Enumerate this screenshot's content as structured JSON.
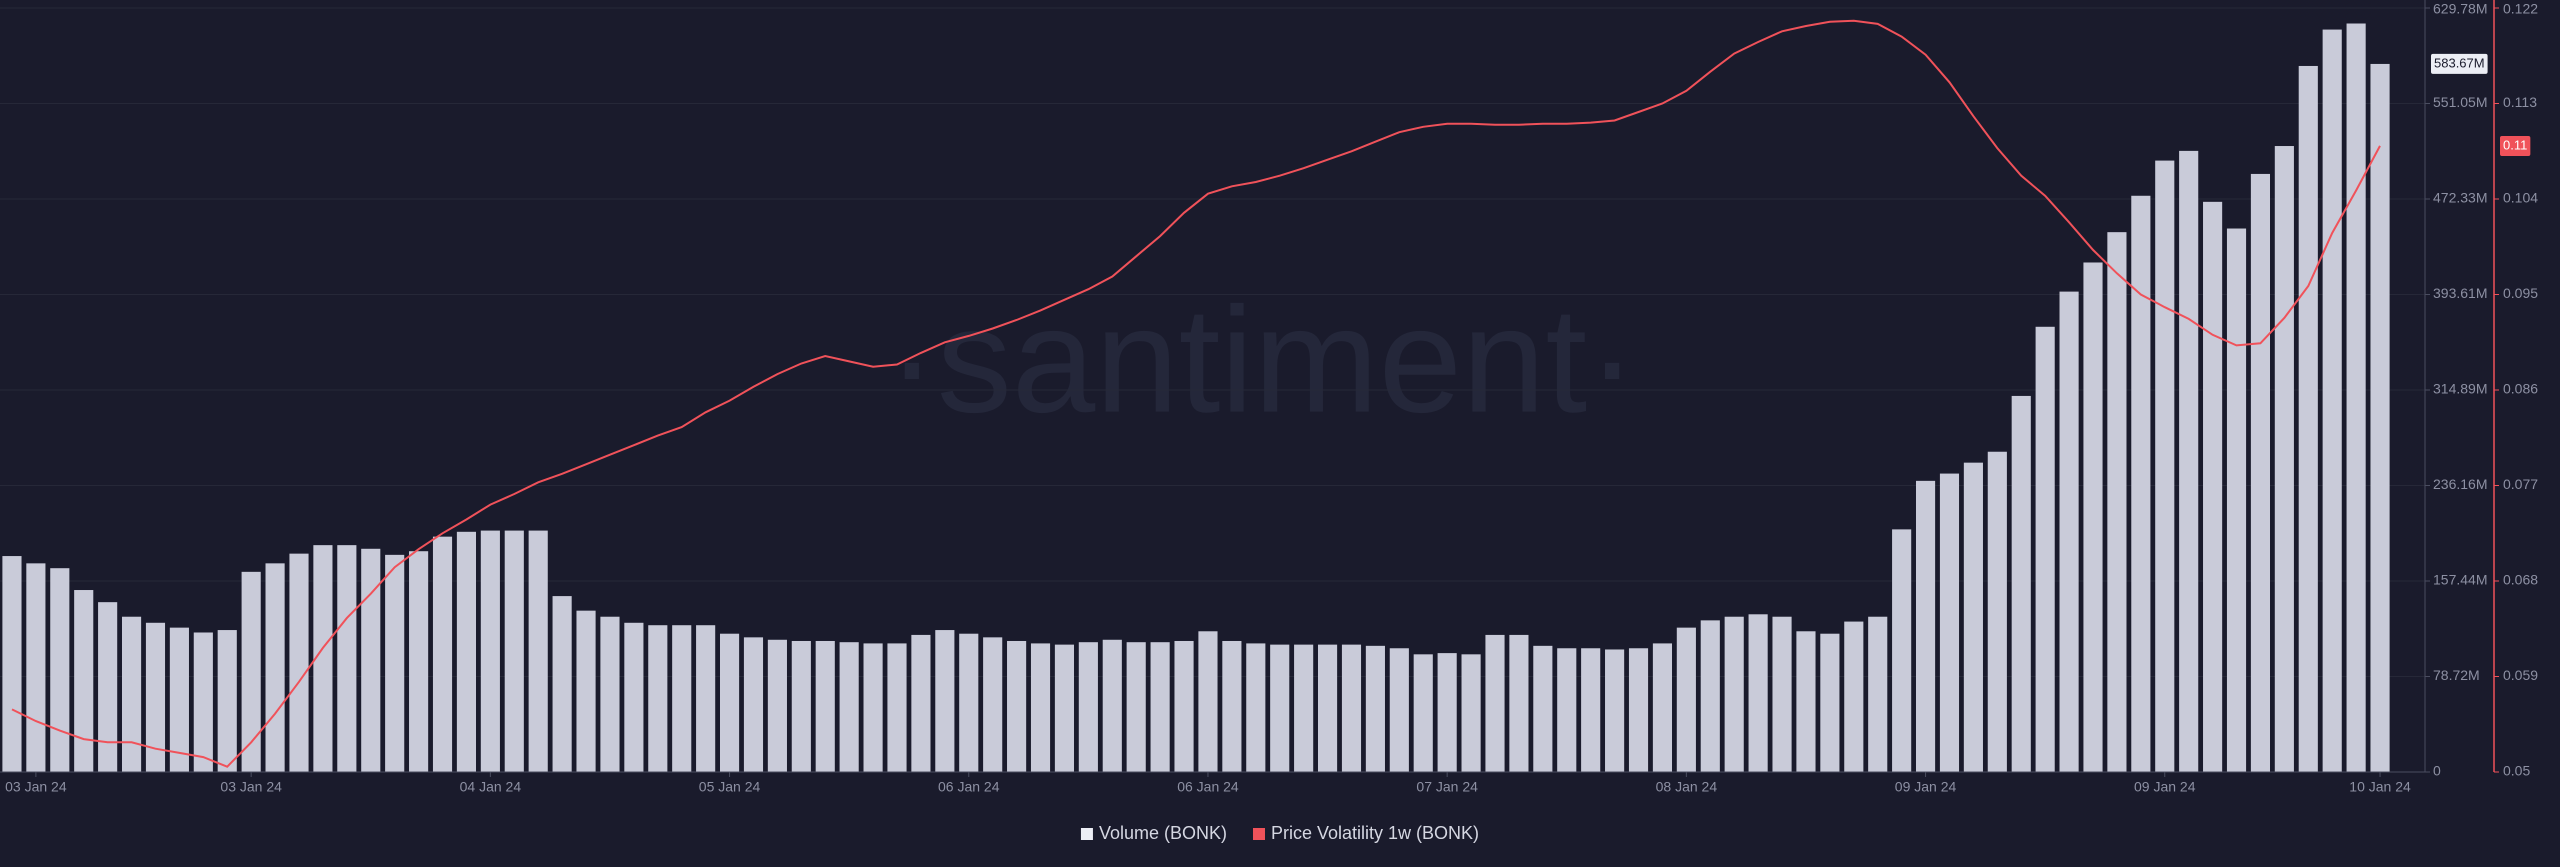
{
  "chart_data": {
    "type": "combo",
    "watermark": "·santiment·",
    "categories": [
      null,
      "03 Jan 24",
      null,
      null,
      null,
      null,
      null,
      null,
      null,
      null,
      "03 Jan 24",
      null,
      null,
      null,
      null,
      null,
      null,
      null,
      null,
      null,
      "04 Jan 24",
      null,
      null,
      null,
      null,
      null,
      null,
      null,
      null,
      null,
      "05 Jan 24",
      null,
      null,
      null,
      null,
      null,
      null,
      null,
      null,
      null,
      "06 Jan 24",
      null,
      null,
      null,
      null,
      null,
      null,
      null,
      null,
      null,
      "06 Jan 24",
      null,
      null,
      null,
      null,
      null,
      null,
      null,
      null,
      null,
      "07 Jan 24",
      null,
      null,
      null,
      null,
      null,
      null,
      null,
      null,
      null,
      "08 Jan 24",
      null,
      null,
      null,
      null,
      null,
      null,
      null,
      null,
      null,
      "09 Jan 24",
      null,
      null,
      null,
      null,
      null,
      null,
      null,
      null,
      null,
      "09 Jan 24",
      null,
      null,
      null,
      null,
      null,
      null,
      null,
      null,
      "10 Jan 24"
    ],
    "ylim": [
      0,
      629780000
    ],
    "yticks": [
      0,
      {
        "value": 78720000,
        "label": "78.72M"
      },
      {
        "value": 157440000,
        "label": "157.44M"
      },
      {
        "value": 236160000,
        "label": "236.16M"
      },
      {
        "value": 314890000,
        "label": "314.89M"
      },
      {
        "value": 393610000,
        "label": "393.61M"
      },
      {
        "value": 472330000,
        "label": "472.33M"
      },
      {
        "value": 551050000,
        "label": "551.05M"
      },
      {
        "value": 629780000,
        "label": "629.78M"
      }
    ],
    "y2lim": [
      0.05,
      0.122
    ],
    "y2ticks": [
      0.05,
      0.059,
      0.068,
      0.077,
      0.086,
      0.095,
      0.104,
      0.113,
      0.122
    ],
    "grid": true,
    "legend": "bottom",
    "series": [
      {
        "name": "Volume (BONK)",
        "type": "bar",
        "color": "#c9cbd9",
        "current_label": "583.67M",
        "values": [
          178000000,
          172000000,
          168000000,
          150000000,
          140000000,
          128000000,
          123000000,
          119000000,
          115000000,
          117000000,
          165000000,
          172000000,
          180000000,
          187000000,
          187000000,
          184000000,
          179000000,
          182000000,
          194000000,
          198000000,
          199000000,
          199000000,
          199000000,
          145000000,
          133000000,
          128000000,
          123000000,
          121000000,
          121000000,
          121000000,
          114000000,
          111000000,
          109000000,
          108000000,
          108000000,
          107000000,
          106000000,
          106000000,
          113000000,
          117000000,
          114000000,
          111000000,
          108000000,
          106000000,
          105000000,
          107000000,
          109000000,
          107000000,
          107000000,
          108000000,
          116000000,
          108000000,
          106000000,
          105000000,
          105000000,
          105000000,
          105000000,
          104000000,
          102000000,
          97000000,
          98000000,
          97000000,
          113000000,
          113000000,
          104000000,
          102000000,
          102000000,
          101000000,
          102000000,
          106000000,
          119000000,
          125000000,
          128000000,
          130000000,
          128000000,
          116000000,
          114000000,
          124000000,
          128000000,
          200000000,
          240000000,
          246000000,
          255000000,
          264000000,
          310000000,
          367000000,
          396000000,
          420000000,
          445000000,
          475000000,
          504000000,
          512000000,
          470000000,
          448000000,
          493000000,
          516000000,
          582000000,
          612000000,
          617000000,
          583670000
        ]
      },
      {
        "name": "Price Volatility 1w (BONK)",
        "type": "line",
        "axis": "y2",
        "color": "#f0525a",
        "current_label": "0.11",
        "values": [
          0.0559,
          0.0548,
          0.0539,
          0.0531,
          0.0528,
          0.0528,
          0.0522,
          0.0518,
          0.0514,
          0.0505,
          0.0528,
          0.0555,
          0.0585,
          0.0617,
          0.0645,
          0.0668,
          0.0693,
          0.071,
          0.0725,
          0.0738,
          0.0752,
          0.0762,
          0.0773,
          0.0781,
          0.079,
          0.0799,
          0.0808,
          0.0817,
          0.0825,
          0.0839,
          0.085,
          0.0863,
          0.0875,
          0.0885,
          0.0892,
          0.0887,
          0.0882,
          0.0884,
          0.0895,
          0.0905,
          0.0911,
          0.0918,
          0.0926,
          0.0935,
          0.0945,
          0.0955,
          0.0967,
          0.0986,
          0.1005,
          0.1027,
          0.1045,
          0.1052,
          0.1056,
          0.1062,
          0.1069,
          0.1077,
          0.1085,
          0.1094,
          0.1103,
          0.1108,
          0.1111,
          0.1111,
          0.111,
          0.111,
          0.1111,
          0.1111,
          0.1112,
          0.1114,
          0.1122,
          0.113,
          0.1142,
          0.116,
          0.1177,
          0.1188,
          0.1198,
          0.1203,
          0.1207,
          0.1208,
          0.1205,
          0.1193,
          0.1176,
          0.115,
          0.1118,
          0.1088,
          0.1062,
          0.1043,
          0.1018,
          0.0992,
          0.097,
          0.095,
          0.0938,
          0.0927,
          0.0912,
          0.0902,
          0.0904,
          0.0928,
          0.0958,
          0.1008,
          0.1048,
          0.109
        ]
      }
    ]
  }
}
